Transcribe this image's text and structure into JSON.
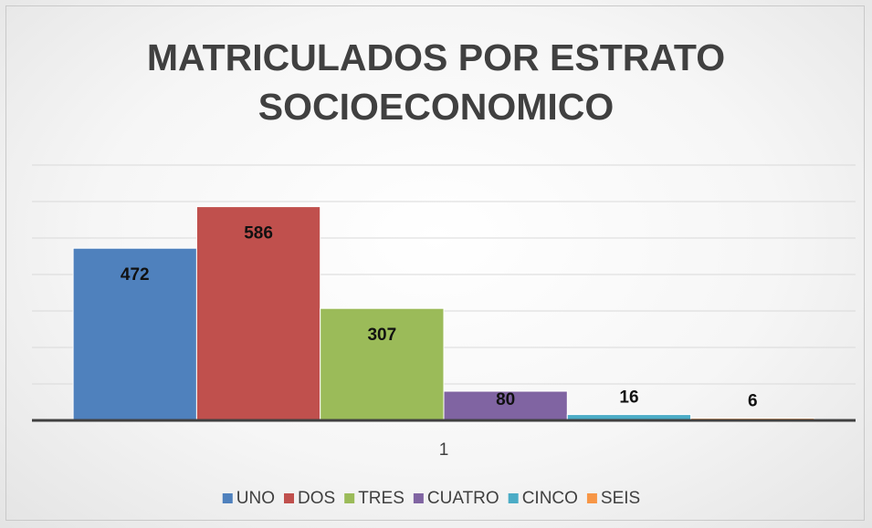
{
  "chart_data": {
    "type": "bar",
    "title": "MATRICULADOS POR ESTRATO SOCIOECONOMICO",
    "categories": [
      "1"
    ],
    "series": [
      {
        "name": "UNO",
        "color": "#4f81bd",
        "values": [
          472
        ]
      },
      {
        "name": "DOS",
        "color": "#c0504d",
        "values": [
          586
        ]
      },
      {
        "name": "TRES",
        "color": "#9bbb59",
        "values": [
          307
        ]
      },
      {
        "name": "CUATRO",
        "color": "#8064a2",
        "values": [
          80
        ]
      },
      {
        "name": "CINCO",
        "color": "#4bacc6",
        "values": [
          16
        ]
      },
      {
        "name": "SEIS",
        "color": "#f79646",
        "values": [
          6
        ]
      }
    ],
    "ylim": [
      0,
      700
    ],
    "yticks": [
      0,
      100,
      200,
      300,
      400,
      500,
      600,
      700
    ],
    "grid": true,
    "legend": "bottom"
  }
}
